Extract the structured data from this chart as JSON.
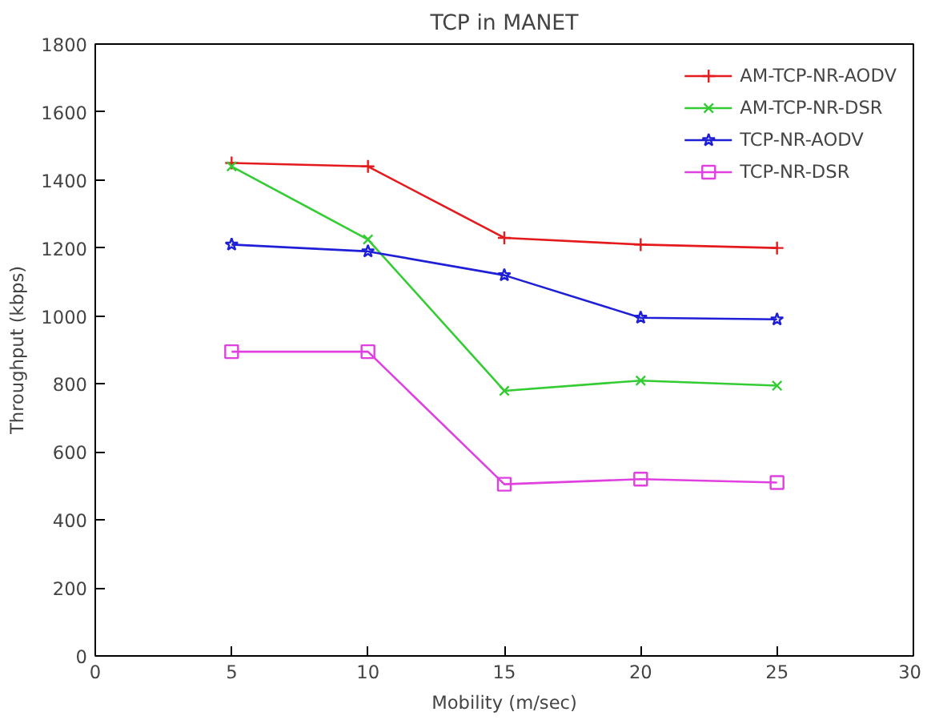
{
  "chart_data": {
    "type": "line",
    "title": "TCP in MANET",
    "xlabel": "Mobility (m/sec)",
    "ylabel": "Throughput (kbps)",
    "x": [
      5,
      10,
      15,
      20,
      25
    ],
    "series": [
      {
        "name": "AM-TCP-NR-AODV",
        "color": "#e41a1c",
        "marker": "cross",
        "values": [
          1450,
          1440,
          1230,
          1210,
          1200
        ]
      },
      {
        "name": "AM-TCP-NR-DSR",
        "color": "#33cc33",
        "marker": "x",
        "values": [
          1440,
          1225,
          780,
          810,
          795
        ]
      },
      {
        "name": "TCP-NR-AODV",
        "color": "#1f1fd8",
        "marker": "star",
        "values": [
          1210,
          1190,
          1120,
          995,
          990
        ]
      },
      {
        "name": "TCP-NR-DSR",
        "color": "#e040e0",
        "marker": "square",
        "values": [
          895,
          895,
          505,
          520,
          510
        ]
      }
    ],
    "xlim": [
      0,
      30
    ],
    "xticks": [
      0,
      5,
      10,
      15,
      20,
      25,
      30
    ],
    "ylim": [
      0,
      1800
    ],
    "yticks": [
      0,
      200,
      400,
      600,
      800,
      1000,
      1200,
      1400,
      1600,
      1800
    ],
    "grid": false,
    "legend": "top right",
    "line_style": "solid"
  }
}
